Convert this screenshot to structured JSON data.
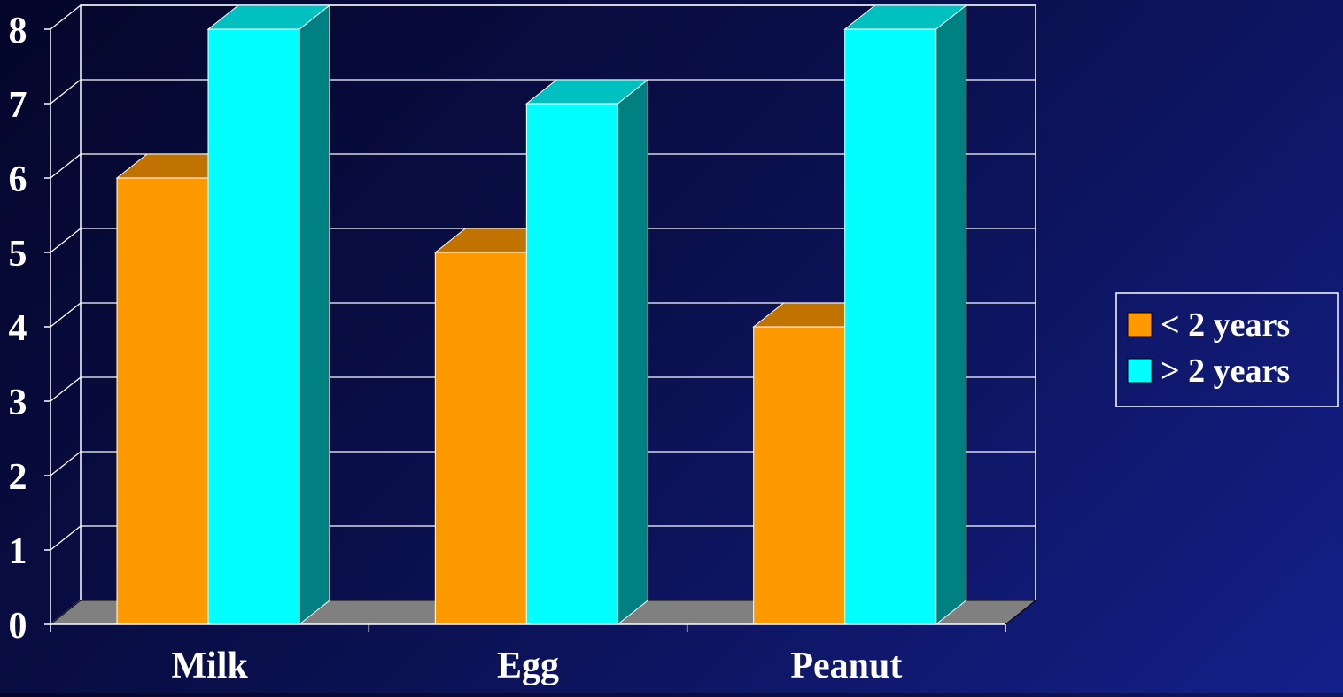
{
  "chart_data": {
    "type": "bar",
    "style": "3d-clustered-column",
    "categories": [
      "Milk",
      "Egg",
      "Peanut"
    ],
    "series": [
      {
        "name": "< 2 years",
        "values": [
          6,
          5,
          4
        ],
        "color": "#ff9900",
        "top_color": "#c07300",
        "side_color": "#a06000"
      },
      {
        "name": "> 2 years",
        "values": [
          8,
          7,
          8
        ],
        "color": "#00ffff",
        "top_color": "#00c0c0",
        "side_color": "#008080"
      }
    ],
    "y_ticks": [
      "0",
      "1",
      "2",
      "3",
      "4",
      "5",
      "6",
      "7",
      "8"
    ],
    "ylim": [
      0,
      8
    ],
    "grid": true,
    "legend_position": "right",
    "title": "",
    "xlabel": "",
    "ylabel": "",
    "colors": {
      "background": "#0a0f4a",
      "grid": "#ffffff",
      "floor": "#808080",
      "text": "#ffffff"
    }
  }
}
